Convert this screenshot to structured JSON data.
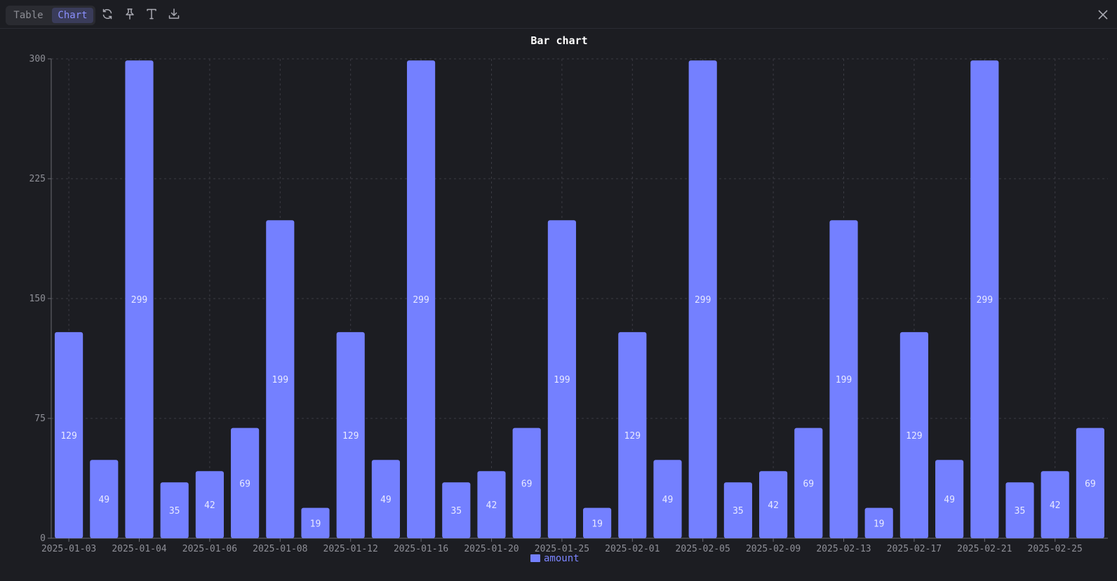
{
  "toolbar": {
    "table_label": "Table",
    "chart_label": "Chart",
    "icons": [
      "refresh-icon",
      "pin-icon",
      "text-icon",
      "download-icon",
      "close-icon"
    ]
  },
  "colors": {
    "bar": "#7480ff",
    "legend_text": "#7b84ff",
    "background": "#1c1d22",
    "axis": "#6a6b72",
    "grid": "#3a3b43",
    "tick_text": "#8e8f97",
    "bar_label": "#e8e9ff",
    "title": "#ffffff"
  },
  "chart_data": {
    "type": "bar",
    "title": "Bar chart",
    "xlabel": "",
    "ylabel": "",
    "ylim": [
      0,
      300
    ],
    "yticks": [
      0,
      75,
      150,
      225,
      300
    ],
    "grid": true,
    "legend": "bottom-center",
    "xtick_labels": [
      "2025-01-03",
      "2025-01-04",
      "2025-01-06",
      "2025-01-08",
      "2025-01-12",
      "2025-01-16",
      "2025-01-20",
      "2025-01-25",
      "2025-02-01",
      "2025-02-05",
      "2025-02-09",
      "2025-02-13",
      "2025-02-17",
      "2025-02-21",
      "2025-02-25"
    ],
    "series": [
      {
        "name": "amount",
        "values": [
          129,
          49,
          299,
          35,
          42,
          69,
          199,
          19,
          129,
          49,
          299,
          35,
          42,
          69,
          199,
          19,
          129,
          49,
          299,
          35,
          42,
          69,
          199,
          19,
          129,
          49,
          299,
          35,
          42,
          69
        ]
      }
    ]
  }
}
